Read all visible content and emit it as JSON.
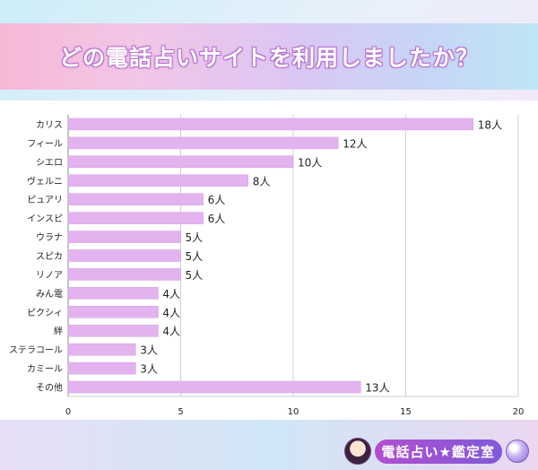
{
  "title": "どの電話占いサイトを利用しましたか？",
  "logo_text": "電話占い★鑑定室",
  "colors": {
    "bar": "#e3b3ef",
    "bar_edge": "#d39be6",
    "grid": "#cfcfcf",
    "axis": "#888888",
    "text": "#222222"
  },
  "chart_data": {
    "type": "bar",
    "orientation": "horizontal",
    "categories": [
      "カリス",
      "フィール",
      "シエロ",
      "ヴェルニ",
      "ピュアリ",
      "インスピ",
      "ウラナ",
      "スピカ",
      "リノア",
      "みん電",
      "ピクシィ",
      "絆",
      "ステラコール",
      "カミール",
      "その他"
    ],
    "values": [
      18,
      12,
      10,
      8,
      6,
      6,
      5,
      5,
      5,
      4,
      4,
      4,
      3,
      3,
      13
    ],
    "value_labels": [
      "18人",
      "12人",
      "10人",
      "8人",
      "6人",
      "6人",
      "5人",
      "5人",
      "5人",
      "4人",
      "4人",
      "4人",
      "3人",
      "3人",
      "13人"
    ],
    "xlim": [
      0,
      20
    ],
    "xticks": [
      0,
      5,
      10,
      15,
      20
    ],
    "xtick_labels": [
      "0",
      "5",
      "10",
      "15",
      "20"
    ],
    "grid": true
  }
}
